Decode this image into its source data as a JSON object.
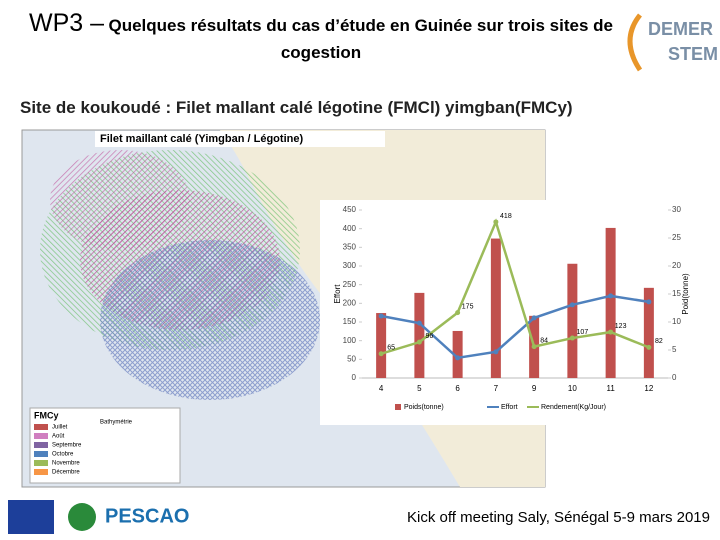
{
  "header": {
    "title_prefix": "WP3 –",
    "title": "Quelques résultats du cas d’étude en Guinée sur trois sites de cogestion",
    "logo_top": "DEMER",
    "logo_bottom": "STEM"
  },
  "subtitle": "Site de koukoudé : Filet mallant calé légotine (FMCl) yimgban(FMCy)",
  "map": {
    "title": "Filet maillant calé (Yimgban / Légotine)",
    "legend_title": "FMCy",
    "legend_subtitle": "Bathymétrie",
    "months": [
      "Juillet",
      "Août",
      "Septembre",
      "Octobre",
      "Novembre",
      "Décembre"
    ]
  },
  "chart_data": {
    "type": "combo",
    "categories": [
      "4",
      "5",
      "6",
      "7",
      "9",
      "10",
      "11",
      "12"
    ],
    "series": [
      {
        "name": "Poids(tonne)",
        "type": "bar",
        "axis": "y2",
        "color": "#c0504d",
        "values": [
          11.6,
          15.2,
          8.4,
          24.9,
          11.1,
          20.4,
          26.8,
          16.1
        ]
      },
      {
        "name": "Effort",
        "type": "line",
        "color": "#4f81bd",
        "values": [
          166,
          147,
          54,
          70,
          161,
          196,
          220,
          204
        ]
      },
      {
        "name": "Rendement(Kg/Jour)",
        "type": "line",
        "color": "#9bbb59",
        "values": [
          65,
          96,
          175,
          418,
          84,
          107,
          123,
          82
        ],
        "labels": true
      }
    ],
    "ylabel": "Effort",
    "y2label": "Poid(tonne)",
    "ylim": [
      0,
      450
    ],
    "yticks": [
      0,
      50,
      100,
      150,
      200,
      250,
      300,
      350,
      400,
      450
    ],
    "y2lim": [
      0,
      30
    ],
    "y2ticks": [
      0,
      5,
      10,
      15,
      20,
      25,
      30
    ]
  },
  "footer": {
    "text": "Kick off meeting Saly, Sénégal 5-9 mars 2019",
    "partner": "PESCAO"
  }
}
